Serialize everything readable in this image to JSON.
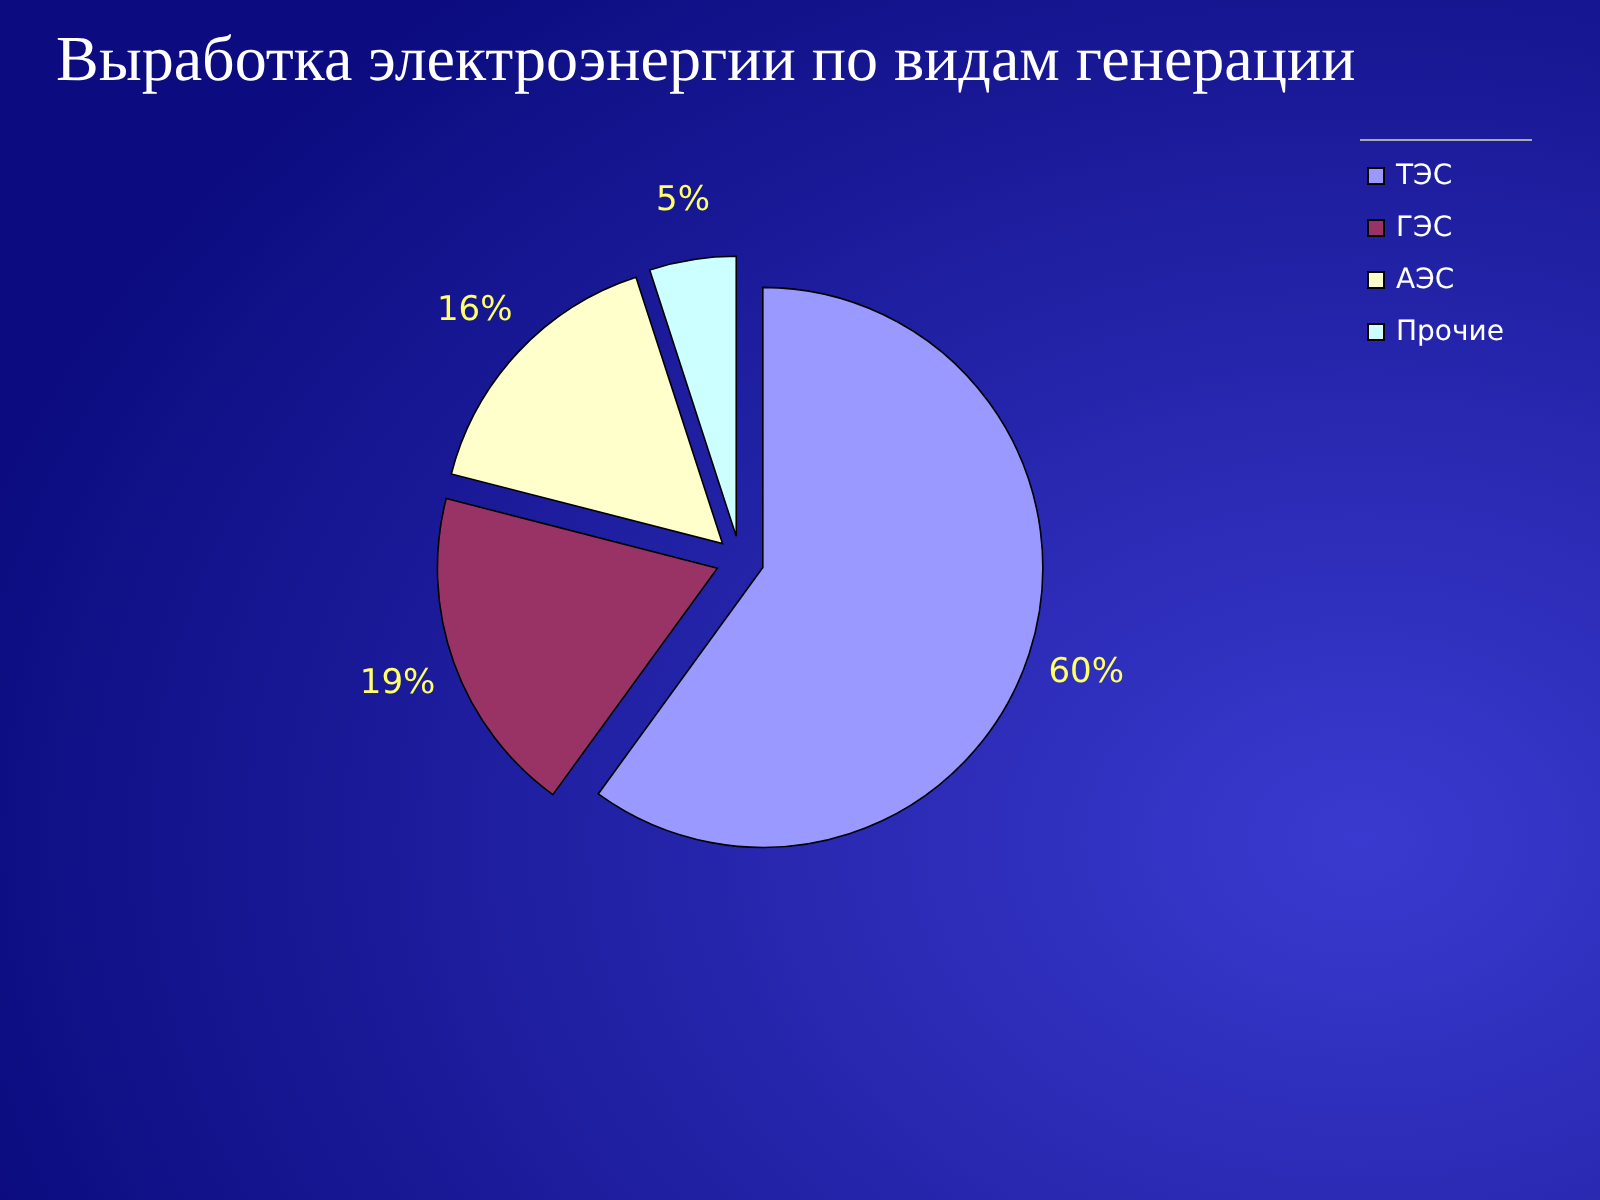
{
  "chart_data": {
    "type": "pie",
    "title": "Выработка электроэнергии по видам генерации",
    "categories": [
      "ТЭС",
      "ГЭС",
      "АЭС",
      "Прочие"
    ],
    "values": [
      60,
      19,
      16,
      5
    ],
    "colors": [
      "#9999ff",
      "#993366",
      "#ffffcc",
      "#ccffff"
    ],
    "value_labels": [
      "60%",
      "19%",
      "16%",
      "5%"
    ],
    "legend": "top right"
  }
}
